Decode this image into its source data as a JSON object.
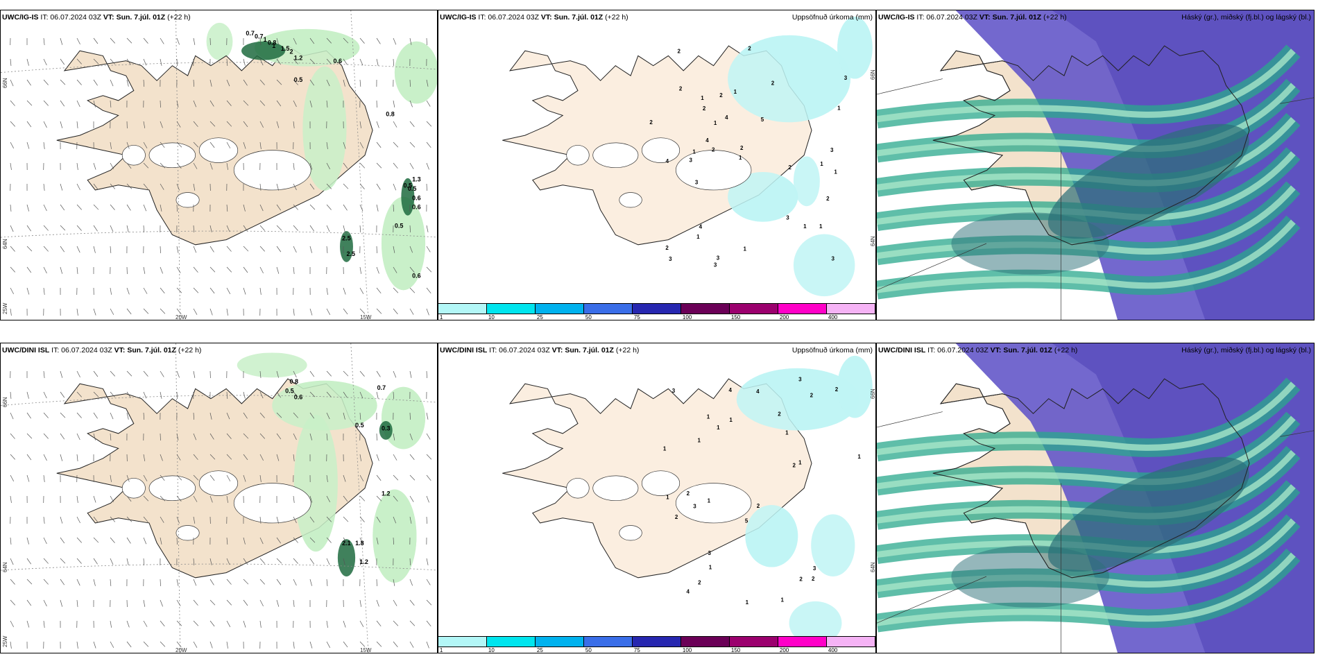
{
  "panels": {
    "r1c1": {
      "model": "UWC/IG-IS",
      "it": "IT: 06.07.2024 03Z",
      "vt": "VT: Sun. 7.júl. 01Z",
      "offset": "(+22 h)",
      "right": ""
    },
    "r1c2": {
      "model": "UWC/IG-IS",
      "it": "IT: 06.07.2024 03Z",
      "vt": "VT: Sun. 7.júl. 01Z",
      "offset": "(+22 h)",
      "right": "Uppsöfnuð úrkoma (mm)"
    },
    "r1c3": {
      "model": "UWC/IG-IS",
      "it": "IT: 06.07.2024 03Z",
      "vt": "VT: Sun. 7.júl. 01Z",
      "offset": "(+22 h)",
      "right": "Háský (gr.), miðský (fj.bl.) og lágský (bl.)"
    },
    "r2c1": {
      "model": "UWC/DINI ISL",
      "it": "IT: 06.07.2024 03Z",
      "vt": "VT: Sun. 7.júl. 01Z",
      "offset": "(+22 h)",
      "right": ""
    },
    "r2c2": {
      "model": "UWC/DINI ISL",
      "it": "IT: 06.07.2024 03Z",
      "vt": "VT: Sun. 7.júl. 01Z",
      "offset": "(+22 h)",
      "right": "Uppsöfnuð úrkoma (mm)"
    },
    "r2c3": {
      "model": "UWC/DINI ISL",
      "it": "IT: 06.07.2024 03Z",
      "vt": "VT: Sun. 7.júl. 01Z",
      "offset": "(+22 h)",
      "right": "Háský (gr.), miðský (fj.bl.) og lágský (bl.)"
    }
  },
  "axis_labels": {
    "lat66": "66N",
    "lat64": "64N",
    "lon25": "25W",
    "lon20": "20W",
    "lon15": "15W"
  },
  "colorbar": {
    "colors": [
      "#b3f7f7",
      "#00e5ee",
      "#00b2ee",
      "#3a6ee8",
      "#2727b0",
      "#6b0057",
      "#9b006e",
      "#ff00c8",
      "#f5b3f5"
    ],
    "labels": [
      "1",
      "10",
      "25",
      "50",
      "75",
      "100",
      "150",
      "200",
      "400"
    ]
  },
  "precip_values_r1c1": [
    "0.7",
    "0.7",
    "1",
    "0.8",
    "1",
    "1.5",
    "2",
    "1.2",
    "0.6",
    "0.5",
    "0.8",
    "0.5",
    "1.3",
    "0.5",
    "0.6",
    "0.6",
    "0.5",
    "2.5",
    "2.5",
    "0.6"
  ],
  "precip_values_r2c1": [
    "0.8",
    "0.5",
    "0.6",
    "0.7",
    "0.5",
    "0.3",
    "1.2",
    "2.1",
    "1.8",
    "1.2"
  ],
  "precip_values_r1c2": [
    "1",
    "1",
    "1",
    "1",
    "1",
    "2",
    "2",
    "2",
    "2",
    "3",
    "3",
    "3",
    "3",
    "4",
    "4",
    "4",
    "5",
    "1",
    "2",
    "1",
    "1",
    "2",
    "3",
    "2",
    "2",
    "2",
    "3",
    "3",
    "3",
    "1",
    "2",
    "2",
    "1",
    "1",
    "1",
    "2",
    "3",
    "4"
  ],
  "precip_values_r2c2": [
    "1",
    "1",
    "1",
    "2",
    "2",
    "2",
    "3",
    "3",
    "4",
    "4",
    "5",
    "1",
    "2",
    "1",
    "2",
    "1",
    "1",
    "2",
    "3",
    "2",
    "3",
    "2",
    "1",
    "1",
    "1",
    "1",
    "2",
    "3",
    "4",
    "1",
    "1",
    "2"
  ],
  "colors": {
    "land": "#f8ead8",
    "green_light": "#c8f0c8",
    "green_dark": "#2e8b57",
    "cloud_high": "#6a5acd",
    "cloud_mid": "#20b2aa",
    "cloud_low": "#2f6f78"
  }
}
